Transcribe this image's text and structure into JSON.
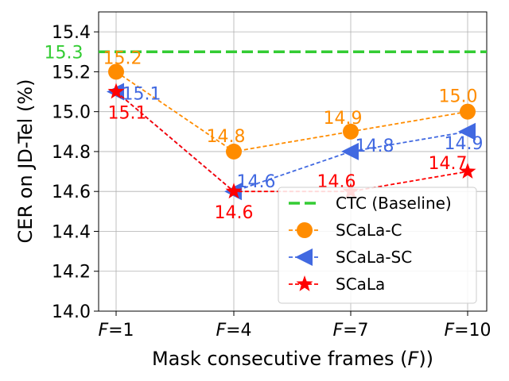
{
  "chart_data": {
    "type": "line",
    "xlabel_prefix": "Mask consecutive frames (",
    "xlabel_var": "F",
    "xlabel_suffix": "))",
    "ylabel": "CER on JD-Tel (%)",
    "categories": [
      "F=1",
      "F=4",
      "F=7",
      "F=10"
    ],
    "x_tick_values": [
      "1",
      "4",
      "7",
      "10"
    ],
    "x_tick_var": "F",
    "ylim": [
      14.0,
      15.5
    ],
    "yticks": [
      "14.0",
      "14.2",
      "14.4",
      "14.6",
      "14.8",
      "15.0",
      "15.2",
      "15.4"
    ],
    "grid": true,
    "legend_position": "lower-right",
    "baseline": {
      "name": "CTC (Baseline)",
      "value": 15.3,
      "label": "15.3",
      "color": "#33cc33",
      "style": "dashed"
    },
    "series": [
      {
        "name": "SCaLa-C",
        "values": [
          15.2,
          14.8,
          14.9,
          15.0
        ],
        "labels": [
          "15.2",
          "14.8",
          "14.9",
          "15.0"
        ],
        "color": "#ff8c00",
        "marker": "circle"
      },
      {
        "name": "SCaLa-SC",
        "values": [
          15.1,
          14.6,
          14.8,
          14.9
        ],
        "labels": [
          "15.1",
          "14.6",
          "14.8",
          "14.9"
        ],
        "color": "#4169e1",
        "marker": "triangle-left"
      },
      {
        "name": "SCaLa",
        "values": [
          15.1,
          14.6,
          14.6,
          14.7
        ],
        "labels": [
          "15.1",
          "14.6",
          "14.6",
          "14.7"
        ],
        "color": "#ff0000",
        "marker": "star"
      }
    ]
  }
}
